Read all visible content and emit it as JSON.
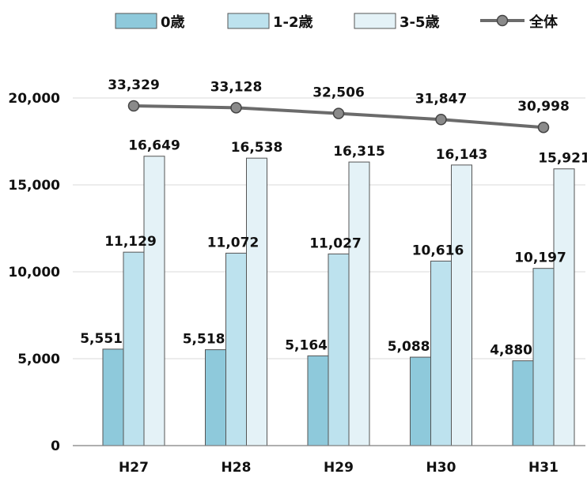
{
  "chart_data": {
    "type": "bar",
    "categories": [
      "H27",
      "H28",
      "H29",
      "H30",
      "H31"
    ],
    "series": [
      {
        "name": "0歳",
        "values": [
          5551,
          5518,
          5164,
          5088,
          4880
        ],
        "color": "#8ec9db"
      },
      {
        "name": "1-2歳",
        "values": [
          11129,
          11072,
          11027,
          10616,
          10197
        ],
        "color": "#bde2ee"
      },
      {
        "name": "3-5歳",
        "values": [
          16649,
          16538,
          16315,
          16143,
          15921
        ],
        "color": "#e4f2f7"
      }
    ],
    "line_series": {
      "name": "全体",
      "values": [
        33329,
        33128,
        32506,
        31847,
        30998
      ],
      "color": "#6b6b6b",
      "marker_color": "#8a8a8a",
      "plotted_on_scale": false
    },
    "value_labels": {
      "0歳": [
        "5,551",
        "5,518",
        "5,164",
        "5,088",
        "4,880"
      ],
      "1-2歳": [
        "11,129",
        "11,072",
        "11,027",
        "10,616",
        "10,197"
      ],
      "3-5歳": [
        "16,649",
        "16,538",
        "16,315",
        "16,143",
        "15,921"
      ],
      "全体": [
        "33,329",
        "33,128",
        "32,506",
        "31,847",
        "30,998"
      ]
    },
    "y_ticks": [
      0,
      5000,
      10000,
      15000,
      20000
    ],
    "y_tick_labels": [
      "0",
      "5,000",
      "10,000",
      "15,000",
      "20,000"
    ],
    "ylim": [
      0,
      20000
    ],
    "grid": true,
    "legend_position": "top",
    "axis_color": "#7f7f7f",
    "grid_color": "#d9d9d9",
    "bar_border_color": "#555555"
  }
}
